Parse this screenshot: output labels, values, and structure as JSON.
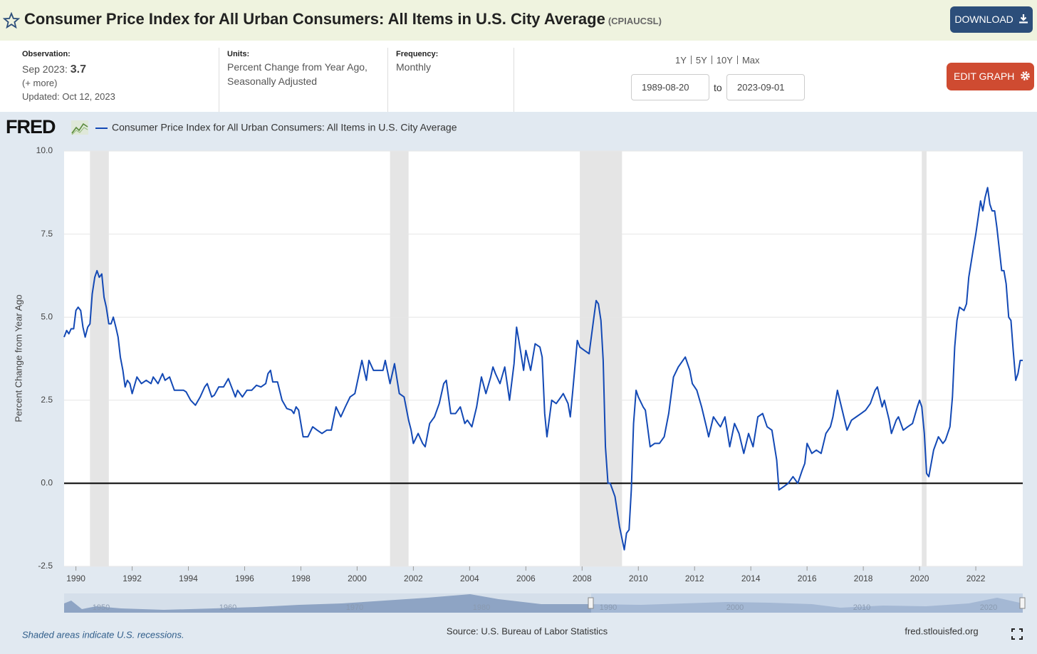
{
  "header": {
    "title": "Consumer Price Index for All Urban Consumers: All Items in U.S. City Average",
    "series_id": "(CPIAUCSL)",
    "download": "DOWNLOAD"
  },
  "info": {
    "observation": {
      "label": "Observation:",
      "date": "Sep 2023:",
      "value": 3.7,
      "more": "(+ more)",
      "updated": "Updated: Oct 12, 2023"
    },
    "units": {
      "label": "Units:",
      "text": "Percent Change from Year Ago, Seasonally Adjusted"
    },
    "frequency": {
      "label": "Frequency:",
      "text": "Monthly"
    },
    "ranges": [
      "1Y",
      "5Y",
      "10Y",
      "Max"
    ],
    "start_date": "1989-08-20",
    "to": "to",
    "end_date": "2023-09-01",
    "edit_graph": "EDIT GRAPH"
  },
  "logo": "FRED",
  "chart_data": {
    "type": "line",
    "y_label": "Percent Change from Year Ago",
    "xlim": [
      1989.58,
      2023.67
    ],
    "xticks": [
      1990,
      1992,
      1994,
      1996,
      1998,
      2000,
      2002,
      2004,
      2006,
      2008,
      2010,
      2012,
      2014,
      2016,
      2018,
      2020,
      2022
    ],
    "ylim": [
      -2.5,
      10
    ],
    "yticks": [
      -2.5,
      {
        "value": 0,
        "label": "0.0"
      },
      2.5,
      {
        "value": 5,
        "label": "5.0"
      },
      7.5,
      {
        "value": 10,
        "label": "10.0"
      }
    ],
    "grid": true,
    "recessions": [
      [
        1990.5,
        1991.17
      ],
      [
        2001.17,
        2001.83
      ],
      [
        2007.92,
        2009.42
      ],
      [
        2020.08,
        2020.25
      ]
    ],
    "recession_color": "#e5e5e5",
    "x": [
      1989.58,
      1989.67,
      1989.75,
      1989.83,
      1989.92,
      1990.0,
      1990.08,
      1990.17,
      1990.25,
      1990.33,
      1990.42,
      1990.5,
      1990.58,
      1990.67,
      1990.75,
      1990.83,
      1990.92,
      1991.0,
      1991.08,
      1991.17,
      1991.25,
      1991.33,
      1991.42,
      1991.5,
      1991.58,
      1991.67,
      1991.75,
      1991.83,
      1991.92,
      1992.0,
      1992.17,
      1992.33,
      1992.5,
      1992.67,
      1992.75,
      1992.92,
      1993.08,
      1993.17,
      1993.33,
      1993.5,
      1993.67,
      1993.83,
      1993.92,
      1994.08,
      1994.25,
      1994.42,
      1994.58,
      1994.67,
      1994.83,
      1994.92,
      1995.08,
      1995.25,
      1995.42,
      1995.58,
      1995.67,
      1995.75,
      1995.92,
      1996.08,
      1996.25,
      1996.42,
      1996.58,
      1996.75,
      1996.83,
      1996.92,
      1997.0,
      1997.17,
      1997.33,
      1997.5,
      1997.67,
      1997.75,
      1997.83,
      1997.92,
      1998.08,
      1998.25,
      1998.42,
      1998.58,
      1998.75,
      1998.92,
      1999.08,
      1999.25,
      1999.42,
      1999.58,
      1999.75,
      1999.92,
      2000.17,
      2000.33,
      2000.42,
      2000.58,
      2000.83,
      2000.92,
      2001.0,
      2001.17,
      2001.33,
      2001.5,
      2001.67,
      2001.83,
      2001.92,
      2002.0,
      2002.17,
      2002.33,
      2002.42,
      2002.58,
      2002.75,
      2002.92,
      2003.08,
      2003.17,
      2003.33,
      2003.5,
      2003.67,
      2003.83,
      2003.92,
      2004.08,
      2004.25,
      2004.42,
      2004.58,
      2004.75,
      2004.83,
      2004.92,
      2005.08,
      2005.25,
      2005.42,
      2005.58,
      2005.67,
      2005.75,
      2005.92,
      2006.0,
      2006.17,
      2006.33,
      2006.5,
      2006.58,
      2006.67,
      2006.75,
      2006.92,
      2007.08,
      2007.25,
      2007.33,
      2007.5,
      2007.58,
      2007.67,
      2007.83,
      2007.92,
      2008.08,
      2008.25,
      2008.42,
      2008.5,
      2008.58,
      2008.67,
      2008.75,
      2008.83,
      2008.92,
      2009.0,
      2009.17,
      2009.33,
      2009.5,
      2009.58,
      2009.67,
      2009.75,
      2009.83,
      2009.92,
      2010.0,
      2010.17,
      2010.25,
      2010.42,
      2010.58,
      2010.75,
      2010.92,
      2011.08,
      2011.25,
      2011.42,
      2011.67,
      2011.83,
      2011.92,
      2012.08,
      2012.25,
      2012.42,
      2012.5,
      2012.67,
      2012.83,
      2012.92,
      2013.08,
      2013.25,
      2013.42,
      2013.58,
      2013.75,
      2013.92,
      2014.08,
      2014.25,
      2014.42,
      2014.58,
      2014.75,
      2014.92,
      2015.0,
      2015.17,
      2015.33,
      2015.5,
      2015.67,
      2015.83,
      2015.92,
      2016.0,
      2016.17,
      2016.33,
      2016.5,
      2016.67,
      2016.83,
      2016.92,
      2017.08,
      2017.25,
      2017.42,
      2017.58,
      2017.75,
      2017.92,
      2018.08,
      2018.25,
      2018.42,
      2018.5,
      2018.67,
      2018.75,
      2018.92,
      2019.0,
      2019.17,
      2019.25,
      2019.42,
      2019.58,
      2019.75,
      2019.92,
      2020.0,
      2020.08,
      2020.17,
      2020.25,
      2020.33,
      2020.5,
      2020.67,
      2020.83,
      2020.92,
      2021.08,
      2021.17,
      2021.25,
      2021.33,
      2021.42,
      2021.58,
      2021.67,
      2021.75,
      2021.92,
      2022.0,
      2022.17,
      2022.25,
      2022.33,
      2022.42,
      2022.5,
      2022.58,
      2022.67,
      2022.75,
      2022.92,
      2023.0,
      2023.08,
      2023.17,
      2023.25,
      2023.33,
      2023.42,
      2023.5,
      2023.58,
      2023.67
    ],
    "series": [
      {
        "name": "Consumer Price Index for All Urban Consumers: All Items in U.S. City Average",
        "color": "#1349b5",
        "values": [
          4.4,
          4.6,
          4.5,
          4.65,
          4.65,
          5.2,
          5.3,
          5.2,
          4.7,
          4.4,
          4.7,
          4.8,
          5.7,
          6.2,
          6.4,
          6.2,
          6.3,
          5.6,
          5.3,
          4.8,
          4.8,
          5.0,
          4.7,
          4.4,
          3.8,
          3.4,
          2.9,
          3.1,
          3.0,
          2.7,
          3.2,
          3.0,
          3.1,
          3.0,
          3.2,
          3.0,
          3.3,
          3.1,
          3.2,
          2.8,
          2.8,
          2.8,
          2.75,
          2.5,
          2.35,
          2.6,
          2.9,
          3.0,
          2.6,
          2.65,
          2.9,
          2.9,
          3.15,
          2.8,
          2.6,
          2.8,
          2.6,
          2.8,
          2.8,
          2.95,
          2.9,
          3.0,
          3.3,
          3.4,
          3.05,
          3.05,
          2.5,
          2.25,
          2.2,
          2.1,
          2.3,
          2.2,
          1.4,
          1.4,
          1.7,
          1.6,
          1.5,
          1.6,
          1.6,
          2.3,
          2.0,
          2.3,
          2.6,
          2.7,
          3.7,
          3.1,
          3.7,
          3.4,
          3.4,
          3.4,
          3.7,
          3.0,
          3.6,
          2.7,
          2.6,
          1.9,
          1.6,
          1.2,
          1.5,
          1.2,
          1.1,
          1.8,
          2.0,
          2.4,
          3.0,
          3.1,
          2.1,
          2.1,
          2.3,
          1.8,
          1.9,
          1.7,
          2.3,
          3.2,
          2.7,
          3.2,
          3.5,
          3.3,
          3.0,
          3.5,
          2.5,
          3.6,
          4.7,
          4.3,
          3.4,
          4.0,
          3.4,
          4.2,
          4.1,
          3.8,
          2.1,
          1.4,
          2.5,
          2.4,
          2.6,
          2.7,
          2.4,
          2.0,
          2.8,
          4.3,
          4.1,
          4.0,
          3.9,
          5.0,
          5.5,
          5.4,
          4.9,
          3.7,
          1.1,
          0.0,
          0.0,
          -0.4,
          -1.3,
          -2.0,
          -1.5,
          -1.4,
          -0.2,
          1.8,
          2.8,
          2.6,
          2.3,
          2.2,
          1.1,
          1.2,
          1.2,
          1.4,
          2.1,
          3.2,
          3.5,
          3.8,
          3.4,
          3.0,
          2.8,
          2.3,
          1.7,
          1.4,
          2.0,
          1.8,
          1.7,
          2.0,
          1.1,
          1.8,
          1.5,
          0.9,
          1.5,
          1.1,
          2.0,
          2.1,
          1.7,
          1.6,
          0.7,
          -0.2,
          -0.1,
          0.0,
          0.2,
          0.0,
          0.4,
          0.6,
          1.2,
          0.9,
          1.0,
          0.9,
          1.5,
          1.7,
          2.0,
          2.8,
          2.2,
          1.6,
          1.9,
          2.0,
          2.1,
          2.2,
          2.4,
          2.8,
          2.9,
          2.3,
          2.5,
          1.9,
          1.5,
          1.9,
          2.0,
          1.6,
          1.7,
          1.8,
          2.3,
          2.5,
          2.3,
          1.5,
          0.3,
          0.2,
          1.0,
          1.4,
          1.2,
          1.3,
          1.7,
          2.6,
          4.1,
          4.9,
          5.3,
          5.2,
          5.4,
          6.2,
          7.1,
          7.5,
          8.5,
          8.2,
          8.6,
          8.9,
          8.4,
          8.2,
          8.2,
          7.7,
          6.4,
          6.4,
          6.0,
          5.0,
          4.9,
          4.0,
          3.1,
          3.3,
          3.7,
          3.7
        ]
      }
    ]
  },
  "navigator": {
    "labels": [
      "1950",
      "1960",
      "1970",
      "1980",
      "1990",
      "2000",
      "2010",
      "2020"
    ]
  },
  "footer": {
    "note": "Shaded areas indicate U.S. recessions.",
    "source": "Source: U.S. Bureau of Labor Statistics",
    "site": "fred.stlouisfed.org"
  }
}
